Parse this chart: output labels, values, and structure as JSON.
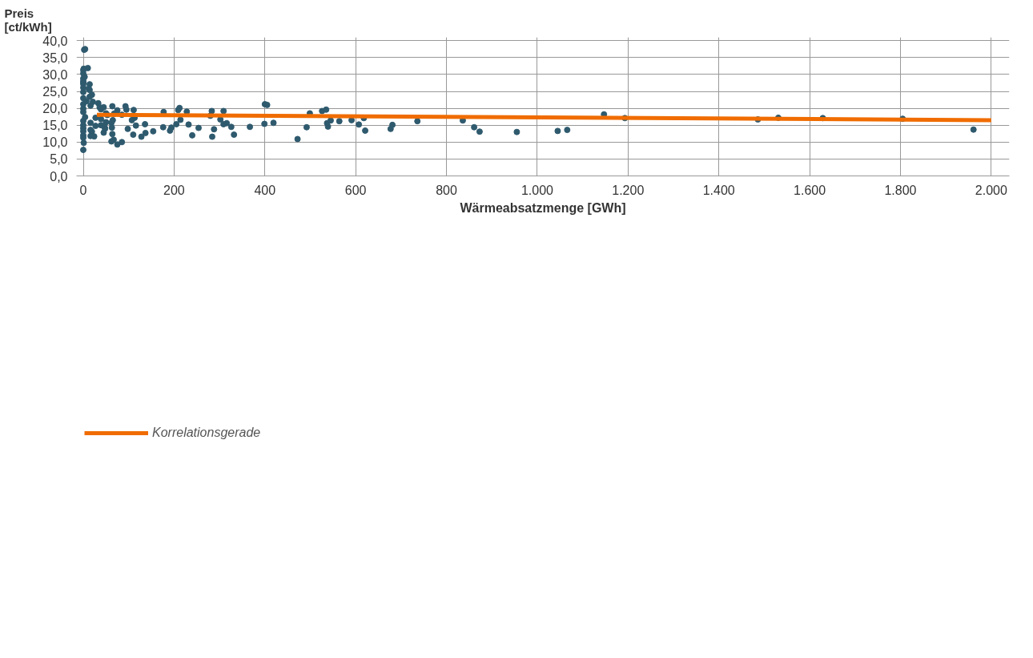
{
  "chart_data": {
    "type": "scatter",
    "xlabel": "Wärmeabsatzmenge [GWh]",
    "ylabel": "Preis\n[ct/kWh]",
    "xlim": [
      -15,
      2040
    ],
    "ylim": [
      0,
      41
    ],
    "xticks": [
      0,
      200,
      400,
      600,
      800,
      {
        "value": 1000,
        "label": "1.000"
      },
      {
        "value": 1200,
        "label": "1.200"
      },
      {
        "value": 1400,
        "label": "1.400"
      },
      {
        "value": 1600,
        "label": "1.600"
      },
      {
        "value": 1800,
        "label": "1.800"
      },
      {
        "value": 2000,
        "label": "2.000"
      }
    ],
    "yticks": [
      {
        "value": 0,
        "label": "0,0"
      },
      {
        "value": 5,
        "label": "5,0"
      },
      {
        "value": 10,
        "label": "10,0"
      },
      {
        "value": 15,
        "label": "15,0"
      },
      {
        "value": 20,
        "label": "20,0"
      },
      {
        "value": 25,
        "label": "25,0"
      },
      {
        "value": 30,
        "label": "30,0"
      },
      {
        "value": 35,
        "label": "35,0"
      },
      {
        "value": 40,
        "label": "40,0"
      }
    ],
    "grid": true,
    "legend": "bottom",
    "series": [
      {
        "marker": "circle",
        "color": "#2f5a6e",
        "x": [
          4,
          2,
          10,
          1,
          0,
          0,
          3,
          0,
          0,
          0,
          14,
          0,
          12,
          14,
          0,
          19,
          14,
          0,
          0,
          7,
          21,
          33,
          0,
          45,
          36,
          16,
          39,
          0,
          50,
          68,
          85,
          53,
          0,
          4,
          27,
          39,
          65,
          0,
          16,
          50,
          62,
          0,
          27,
          39,
          0,
          16,
          48,
          0,
          19,
          45,
          0,
          16,
          24,
          0,
          1,
          0,
          64,
          93,
          95,
          111,
          75,
          177,
          209,
          212,
          228,
          283,
          280,
          113,
          107,
          63,
          47,
          98,
          136,
          116,
          154,
          137,
          128,
          110,
          64,
          67,
          62,
          85,
          75,
          176,
          194,
          191,
          205,
          232,
          214,
          240,
          254,
          284,
          400,
          405,
          309,
          302,
          309,
          316,
          326,
          367,
          288,
          332,
          399,
          419,
          472,
          492,
          499,
          526,
          535,
          537,
          539,
          545,
          564,
          591,
          618,
          607,
          621,
          677,
          681,
          736,
          836,
          861,
          873,
          955,
          1045,
          1066,
          1147,
          1193,
          1486,
          1531,
          1629,
          1805,
          1961
        ],
        "values": [
          37.5,
          37.3,
          31.9,
          31.7,
          31.3,
          30.3,
          29.3,
          28.8,
          28.0,
          27.6,
          27.1,
          27.2,
          25.8,
          25.4,
          26.1,
          24.0,
          23.4,
          24.8,
          23.0,
          22.1,
          21.9,
          21.5,
          21.2,
          20.3,
          20.3,
          20.8,
          19.7,
          19.9,
          18.5,
          18.4,
          18.1,
          18.0,
          18.9,
          17.4,
          17.2,
          16.8,
          16.5,
          16.3,
          15.7,
          15.9,
          15.7,
          15.0,
          14.8,
          15.0,
          14.1,
          13.6,
          14.0,
          13.2,
          13.1,
          12.8,
          12.0,
          11.8,
          11.7,
          11.3,
          9.8,
          7.7,
          20.6,
          20.6,
          19.6,
          19.5,
          19.4,
          18.9,
          19.5,
          20.1,
          19.0,
          19.2,
          17.8,
          17.2,
          16.5,
          14.3,
          14.4,
          13.9,
          15.3,
          14.9,
          13.2,
          12.7,
          11.6,
          12.2,
          12.4,
          10.7,
          10.2,
          10.0,
          9.3,
          14.4,
          14.3,
          13.4,
          15.3,
          15.2,
          16.6,
          12.0,
          14.2,
          11.6,
          21.2,
          21.0,
          19.2,
          16.7,
          15.3,
          15.6,
          14.5,
          14.5,
          13.8,
          12.2,
          15.4,
          15.7,
          10.9,
          14.4,
          18.5,
          19.2,
          19.6,
          15.6,
          14.6,
          16.4,
          16.2,
          16.5,
          17.1,
          15.2,
          13.4,
          13.9,
          15.1,
          16.2,
          16.4,
          14.4,
          13.1,
          13.0,
          13.3,
          13.6,
          18.2,
          17.1,
          16.7,
          17.2,
          17.1,
          16.9,
          13.7
        ]
      },
      {
        "type": "line",
        "marker": "none",
        "name": "Korrelationsgerade",
        "color": "#f06c00",
        "x": [
          30,
          2000
        ],
        "values": [
          18.1,
          16.5
        ]
      }
    ]
  }
}
